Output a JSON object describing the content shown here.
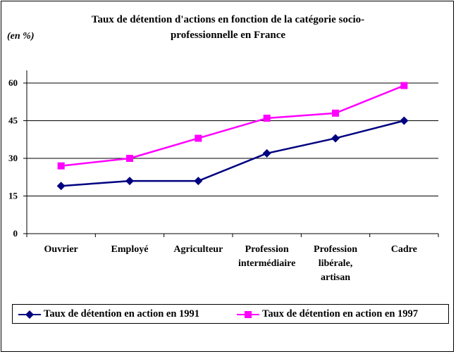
{
  "chart_data": {
    "type": "line",
    "title_line1": "Taux de détention d'actions en fonction de la catégorie socio-",
    "title_line2": "professionnelle en France",
    "unit_label": "(en  %)",
    "categories": [
      [
        "Ouvrier"
      ],
      [
        "Employé"
      ],
      [
        "Agriculteur"
      ],
      [
        "Profession",
        "intermédiaire"
      ],
      [
        "Profession",
        "libérale,",
        "artisan"
      ],
      [
        "Cadre"
      ]
    ],
    "yticks": [
      0,
      15,
      30,
      45,
      60
    ],
    "ylim": [
      0,
      60
    ],
    "grid": true,
    "legend_position": "bottom",
    "series": [
      {
        "name": "Taux de détention en action en 1991",
        "color": "#000080",
        "marker": "diamond",
        "values": [
          19,
          21,
          21,
          32,
          38,
          45
        ]
      },
      {
        "name": "Taux de détention en action en 1997",
        "color": "#ff00ff",
        "marker": "square",
        "values": [
          27,
          30,
          38,
          46,
          48,
          59
        ]
      }
    ]
  }
}
